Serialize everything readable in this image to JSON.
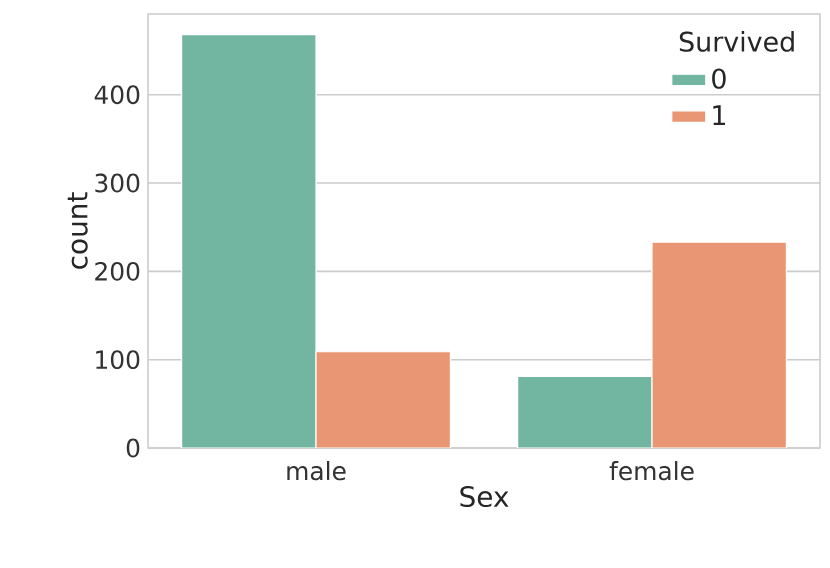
{
  "chart_data": {
    "type": "bar",
    "xlabel": "Sex",
    "ylabel": "count",
    "legend_title": "Survived",
    "categories": [
      "male",
      "female"
    ],
    "series": [
      {
        "name": "0",
        "color": "#72b6a1",
        "values": [
          468,
          81
        ]
      },
      {
        "name": "1",
        "color": "#e99675",
        "values": [
          109,
          233
        ]
      }
    ],
    "ylim": [
      0,
      491.4
    ],
    "yticks": [
      0,
      100,
      200,
      300,
      400
    ],
    "grid": "y",
    "legend": "top right"
  }
}
